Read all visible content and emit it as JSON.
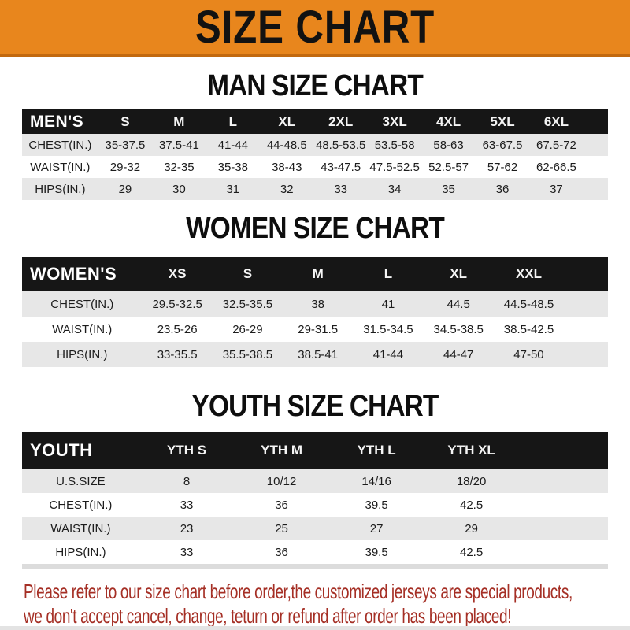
{
  "banner": {
    "title": "SIZE CHART"
  },
  "colors": {
    "banner_orange": "#E8861D",
    "banner_bottom_edge": "#C2690F",
    "header_black": "#161616",
    "row_gray": "#E7E7E7",
    "footer_red": "#A52F25"
  },
  "sections": [
    {
      "title": "MAN SIZE CHART",
      "group_label": "MEN'S",
      "sizes": [
        "S",
        "M",
        "L",
        "XL",
        "2XL",
        "3XL",
        "4XL",
        "5XL",
        "6XL"
      ],
      "rows": [
        {
          "label": "CHEST(IN.)",
          "values": [
            "35-37.5",
            "37.5-41",
            "41-44",
            "44-48.5",
            "48.5-53.5",
            "53.5-58",
            "58-63",
            "63-67.5",
            "67.5-72"
          ]
        },
        {
          "label": "WAIST(IN.)",
          "values": [
            "29-32",
            "32-35",
            "35-38",
            "38-43",
            "43-47.5",
            "47.5-52.5",
            "52.5-57",
            "57-62",
            "62-66.5"
          ]
        },
        {
          "label": "HIPS(IN.)",
          "values": [
            "29",
            "30",
            "31",
            "32",
            "33",
            "34",
            "35",
            "36",
            "37"
          ]
        }
      ]
    },
    {
      "title": "WOMEN SIZE CHART",
      "group_label": "WOMEN'S",
      "sizes": [
        "XS",
        "S",
        "M",
        "L",
        "XL",
        "XXL"
      ],
      "rows": [
        {
          "label": "CHEST(IN.)",
          "values": [
            "29.5-32.5",
            "32.5-35.5",
            "38",
            "41",
            "44.5",
            "44.5-48.5"
          ]
        },
        {
          "label": "WAIST(IN.)",
          "values": [
            "23.5-26",
            "26-29",
            "29-31.5",
            "31.5-34.5",
            "34.5-38.5",
            "38.5-42.5"
          ]
        },
        {
          "label": "HIPS(IN.)",
          "values": [
            "33-35.5",
            "35.5-38.5",
            "38.5-41",
            "41-44",
            "44-47",
            "47-50"
          ]
        }
      ]
    },
    {
      "title": "YOUTH SIZE CHART",
      "group_label": "YOUTH",
      "sizes": [
        "YTH S",
        "YTH M",
        "YTH L",
        "YTH XL"
      ],
      "rows": [
        {
          "label": "U.S.SIZE",
          "values": [
            "8",
            "10/12",
            "14/16",
            "18/20"
          ]
        },
        {
          "label": "CHEST(IN.)",
          "values": [
            "33",
            "36",
            "39.5",
            "42.5"
          ]
        },
        {
          "label": "WAIST(IN.)",
          "values": [
            "23",
            "25",
            "27",
            "29"
          ]
        },
        {
          "label": "HIPS(IN.)",
          "values": [
            "33",
            "36",
            "39.5",
            "42.5"
          ]
        }
      ]
    }
  ],
  "footer": {
    "line1": "Please refer to our size chart before order,the customized jerseys are special products,",
    "line2": "we don't accept cancel, change, teturn or refund after order has been placed!"
  }
}
